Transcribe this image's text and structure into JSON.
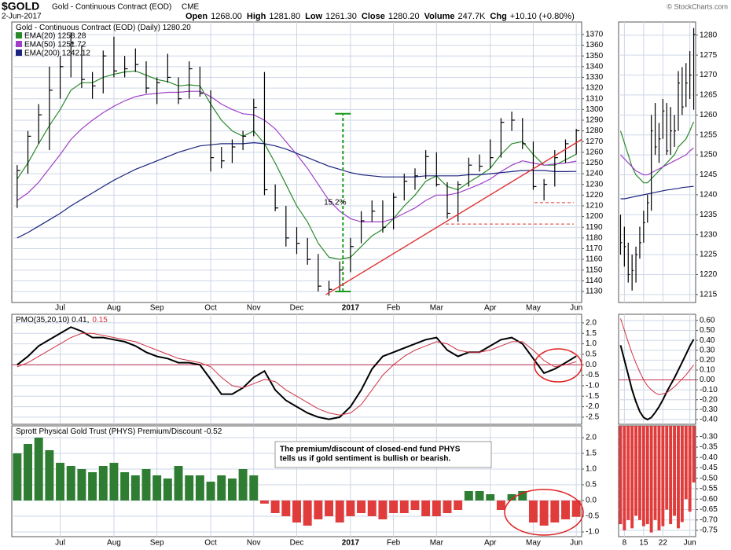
{
  "header": {
    "symbol": "$GOLD",
    "name": "Gold - Continuous Contract (EOD)",
    "exchange": "CME",
    "date": "2-Jun-2017",
    "quote": [
      {
        "label": "Open",
        "value": "1268.00"
      },
      {
        "label": "High",
        "value": "1281.80"
      },
      {
        "label": "Low",
        "value": "1261.30"
      },
      {
        "label": "Close",
        "value": "1280.20"
      },
      {
        "label": "Volume",
        "value": "247.7K"
      },
      {
        "label": "Chg",
        "value": "+10.10 (+0.80%)"
      }
    ],
    "credit": "© StockCharts.com"
  },
  "chart_data": [
    {
      "type": "ohlc",
      "color": "#000000",
      "grid": true,
      "label_parts": [
        {
          "text": "Gold - Continuous Contract (EOD) (Daily) 1280.20",
          "color": "#000000"
        }
      ],
      "categories": [
        null,
        null,
        null,
        null,
        "Jul",
        null,
        null,
        null,
        null,
        "Aug",
        null,
        null,
        null,
        "Sep",
        null,
        null,
        null,
        null,
        "Oct",
        null,
        null,
        null,
        "Nov",
        null,
        null,
        null,
        "Dec",
        null,
        null,
        null,
        null,
        "2017",
        null,
        null,
        null,
        "Feb",
        null,
        null,
        null,
        "Mar",
        null,
        null,
        null,
        null,
        "Apr",
        null,
        null,
        null,
        "May",
        null,
        null,
        null,
        "Jun"
      ],
      "high": [
        1248,
        1280,
        1305,
        1340,
        1350,
        1372,
        1360,
        1335,
        1355,
        1368,
        1350,
        1357,
        1345,
        1330,
        1352,
        1330,
        1345,
        1340,
        1318,
        1265,
        1272,
        1280,
        1310,
        1335,
        1230,
        1210,
        1190,
        1180,
        1165,
        1140,
        1158,
        1180,
        1205,
        1215,
        1215,
        1222,
        1240,
        1245,
        1262,
        1260,
        1232,
        1233,
        1255,
        1258,
        1272,
        1292,
        1298,
        1292,
        1270,
        1235,
        1262,
        1272,
        1281.8
      ],
      "low": [
        1208,
        1240,
        1268,
        1262,
        1310,
        1330,
        1320,
        1310,
        1315,
        1330,
        1330,
        1335,
        1315,
        1305,
        1325,
        1305,
        1310,
        1312,
        1242,
        1245,
        1250,
        1262,
        1275,
        1220,
        1205,
        1172,
        1165,
        1155,
        1130,
        1126,
        1130,
        1148,
        1175,
        1195,
        1185,
        1188,
        1215,
        1225,
        1235,
        1228,
        1198,
        1195,
        1228,
        1242,
        1245,
        1255,
        1280,
        1263,
        1225,
        1215,
        1228,
        1250,
        1258
      ],
      "close": [
        1243,
        1275,
        1295,
        1318,
        1340,
        1362,
        1328,
        1322,
        1350,
        1336,
        1338,
        1342,
        1320,
        1325,
        1330,
        1310,
        1338,
        1315,
        1255,
        1252,
        1265,
        1275,
        1302,
        1225,
        1208,
        1180,
        1175,
        1160,
        1135,
        1132,
        1150,
        1172,
        1196,
        1205,
        1190,
        1218,
        1233,
        1238,
        1256,
        1230,
        1203,
        1230,
        1248,
        1247,
        1255,
        1288,
        1290,
        1268,
        1228,
        1230,
        1255,
        1268,
        1280.2
      ],
      "overlays": [
        {
          "name": "EMA(20) 1258.28",
          "color": "#2a8a2a",
          "values": [
            1235,
            1250,
            1268,
            1285,
            1300,
            1318,
            1325,
            1325,
            1330,
            1333,
            1335,
            1336,
            1332,
            1328,
            1326,
            1322,
            1323,
            1322,
            1305,
            1290,
            1280,
            1275,
            1280,
            1268,
            1250,
            1230,
            1210,
            1195,
            1175,
            1162,
            1160,
            1162,
            1172,
            1182,
            1188,
            1198,
            1210,
            1220,
            1233,
            1238,
            1228,
            1225,
            1232,
            1238,
            1245,
            1258,
            1268,
            1270,
            1258,
            1248,
            1248,
            1253,
            1258.28
          ]
        },
        {
          "name": "EMA(50) 1251.72",
          "color": "#a040c8",
          "values": [
            1215,
            1222,
            1232,
            1245,
            1258,
            1272,
            1282,
            1290,
            1297,
            1303,
            1308,
            1312,
            1314,
            1315,
            1316,
            1316,
            1317,
            1317,
            1312,
            1305,
            1300,
            1296,
            1295,
            1290,
            1282,
            1270,
            1258,
            1245,
            1230,
            1215,
            1205,
            1198,
            1195,
            1195,
            1195,
            1198,
            1203,
            1208,
            1215,
            1220,
            1220,
            1222,
            1226,
            1230,
            1235,
            1242,
            1248,
            1252,
            1250,
            1248,
            1249,
            1250,
            1251.72
          ]
        },
        {
          "name": "EMA(200) 1242.12",
          "color": "#1a237e",
          "values": [
            1180,
            1185,
            1191,
            1197,
            1203,
            1210,
            1216,
            1222,
            1228,
            1234,
            1239,
            1244,
            1248,
            1252,
            1256,
            1260,
            1263,
            1266,
            1267,
            1268,
            1268,
            1268,
            1269,
            1268,
            1266,
            1263,
            1259,
            1255,
            1251,
            1247,
            1244,
            1241,
            1239,
            1238,
            1237,
            1237,
            1237,
            1237,
            1238,
            1238,
            1238,
            1238,
            1239,
            1239,
            1240,
            1241,
            1242,
            1243,
            1243,
            1243,
            1242,
            1242,
            1242.12
          ]
        }
      ],
      "ylim": [
        1119.7,
        1381.7
      ],
      "yticks": [
        1130,
        1140,
        1150,
        1160,
        1170,
        1180,
        1190,
        1200,
        1210,
        1220,
        1230,
        1240,
        1250,
        1260,
        1270,
        1280,
        1290,
        1300,
        1310,
        1320,
        1330,
        1340,
        1350,
        1360,
        1370
      ],
      "annotations": {
        "measure": {
          "values": [
            1130,
            1296
          ],
          "label": "15.2%",
          "color": "#1a9a1a"
        },
        "trendline": {
          "values": [
            1127,
            1272
          ],
          "color": "#e03030"
        },
        "support": {
          "values": [
            1193,
            1213
          ],
          "color": "#e03030"
        }
      }
    },
    {
      "type": "line",
      "grid": true,
      "zero_line_color": "#c03050",
      "label_parts": [
        {
          "text": "PMO(35,20,10) 0.41,",
          "color": "#000000"
        },
        {
          "text": "0.15",
          "color": "#d03040"
        }
      ],
      "series": [
        {
          "color": "#000000",
          "values": [
            0,
            0.4,
            0.9,
            1.2,
            1.5,
            1.8,
            1.6,
            1.3,
            1.3,
            1.2,
            1.1,
            0.9,
            0.6,
            0.4,
            0.3,
            0.1,
            0.1,
            0,
            -0.7,
            -1.4,
            -1.4,
            -1.1,
            -0.6,
            -0.3,
            -1.2,
            -1.7,
            -2,
            -2.3,
            -2.5,
            -2.6,
            -2.5,
            -2,
            -1.2,
            -0.2,
            0.4,
            0.6,
            0.8,
            1,
            1.2,
            1.3,
            0.7,
            0.4,
            0.6,
            0.6,
            0.9,
            1.2,
            1.3,
            1,
            0.3,
            -0.4,
            -0.2,
            0.1,
            0.41
          ]
        },
        {
          "color": "#d03040",
          "values": [
            -0.1,
            0.1,
            0.4,
            0.7,
            1,
            1.3,
            1.5,
            1.5,
            1.4,
            1.3,
            1.2,
            1.1,
            0.9,
            0.7,
            0.5,
            0.3,
            0.2,
            0.1,
            -0.1,
            -0.6,
            -1,
            -1.1,
            -0.9,
            -0.7,
            -0.8,
            -1.2,
            -1.5,
            -1.8,
            -2.1,
            -2.3,
            -2.4,
            -2.3,
            -1.9,
            -1.2,
            -0.5,
            0,
            0.4,
            0.7,
            0.9,
            1.1,
            1,
            0.7,
            0.6,
            0.6,
            0.7,
            0.9,
            1.1,
            1.1,
            0.7,
            0.2,
            -0.1,
            0,
            0.15
          ]
        }
      ],
      "ylim": [
        -2.84,
        2.41
      ],
      "yticks": [
        {
          "value": 2,
          "label": "2.0"
        },
        1.5,
        {
          "value": 1,
          "label": "1.0"
        },
        0.5,
        {
          "value": 0,
          "label": "0.0"
        },
        -0.5,
        {
          "value": -1,
          "label": "-1.0"
        },
        -1.5,
        {
          "value": -2,
          "label": "-2.0"
        },
        -2.5
      ]
    },
    {
      "type": "bar",
      "grid": true,
      "up_color": "#2e7d32",
      "down_color": "#e03c3c",
      "label_parts": [
        {
          "text": "Sprott Physical Gold Trust (PHYS) Premium/Discount -0.52",
          "color": "#000000"
        }
      ],
      "note": [
        "The premium/discount of closed-end fund PHYS",
        "tells us if gold sentiment is bullish or bearish."
      ],
      "values": [
        1.5,
        1.8,
        2,
        1.6,
        1.2,
        1.1,
        1,
        0.9,
        1.1,
        1.2,
        0.9,
        0.8,
        1,
        0.8,
        0.7,
        1.1,
        0.8,
        0.8,
        0.6,
        0.8,
        0.7,
        1,
        0.8,
        -0.1,
        -0.4,
        -0.5,
        -0.7,
        -0.8,
        -0.6,
        -0.5,
        -0.7,
        -0.5,
        -0.4,
        -0.5,
        -0.6,
        -0.4,
        -0.4,
        -0.3,
        -0.5,
        -0.5,
        -0.4,
        -0.3,
        0.3,
        0.3,
        0.2,
        -0.3,
        0.2,
        0.3,
        -0.7,
        -0.8,
        -0.7,
        -0.6,
        -0.52
      ],
      "ylim": [
        -1.15,
        2.375
      ],
      "yticks": [
        {
          "value": 2,
          "label": "2.0"
        },
        1.5,
        {
          "value": 1,
          "label": "1.0"
        },
        0.5,
        {
          "value": 0,
          "label": "0.0"
        },
        -0.5,
        {
          "value": -1,
          "label": "-1.0"
        }
      ]
    },
    {
      "type": "ohlc",
      "color": "#000000",
      "grid": true,
      "high": [
        1235,
        1232,
        1228,
        1225,
        1227,
        1232,
        1236,
        1240,
        1260,
        1263,
        1258,
        1264,
        1263,
        1262,
        1260,
        1271,
        1272,
        1273,
        1276,
        1281.8
      ],
      "low": [
        1225,
        1222,
        1218,
        1216,
        1218,
        1224,
        1228,
        1233,
        1236,
        1250,
        1248,
        1254,
        1250,
        1250,
        1252,
        1256,
        1260,
        1262,
        1264,
        1261.3
      ],
      "close": [
        1228,
        1227,
        1220,
        1221,
        1225,
        1228,
        1233,
        1238,
        1256,
        1252,
        1254,
        1261,
        1251,
        1256,
        1256,
        1268,
        1262,
        1268,
        1270,
        1280.2
      ],
      "overlays": [
        {
          "color": "#2a8a2a",
          "values": [
            1256,
            1253,
            1250,
            1247,
            1245,
            1244,
            1243,
            1243,
            1244,
            1245,
            1246,
            1247,
            1248,
            1249,
            1250,
            1252,
            1253,
            1254,
            1256,
            1258.28
          ]
        },
        {
          "color": "#a040c8",
          "values": [
            1250,
            1249,
            1248,
            1247,
            1246,
            1245.5,
            1245,
            1245,
            1245.5,
            1246,
            1246.5,
            1247,
            1247.5,
            1248,
            1248.5,
            1249,
            1249.5,
            1250,
            1251,
            1251.72
          ]
        },
        {
          "color": "#1a237e",
          "values": [
            1239,
            1239,
            1239.2,
            1239.4,
            1239.6,
            1239.8,
            1240,
            1240.2,
            1240.4,
            1240.6,
            1240.8,
            1241,
            1241.2,
            1241.3,
            1241.5,
            1241.6,
            1241.8,
            1241.9,
            1242,
            1242.12
          ]
        }
      ],
      "ylim": [
        1213,
        1283.3
      ],
      "yticks": [
        1215,
        1220,
        1225,
        1230,
        1235,
        1240,
        1245,
        1250,
        1255,
        1260,
        1265,
        1270,
        1275,
        1280
      ]
    },
    {
      "type": "line",
      "grid": true,
      "zero_line_color": "#c03050",
      "series": [
        {
          "color": "#000000",
          "values": [
            0.35,
            0.2,
            0.05,
            -0.1,
            -0.22,
            -0.32,
            -0.38,
            -0.4,
            -0.38,
            -0.33,
            -0.27,
            -0.2,
            -0.12,
            -0.05,
            0.02,
            0.1,
            0.18,
            0.26,
            0.34,
            0.41
          ]
        },
        {
          "color": "#d03040",
          "values": [
            0.62,
            0.5,
            0.38,
            0.27,
            0.17,
            0.08,
            0,
            -0.06,
            -0.1,
            -0.13,
            -0.15,
            -0.14,
            -0.13,
            -0.1,
            -0.07,
            -0.03,
            0.01,
            0.05,
            0.1,
            0.15
          ]
        }
      ],
      "ylim": [
        -0.448,
        0.663
      ],
      "yticks": [
        {
          "value": 0.6,
          "label": "0.60"
        },
        {
          "value": 0.5,
          "label": "0.50"
        },
        {
          "value": 0.4,
          "label": "0.40"
        },
        {
          "value": 0.3,
          "label": "0.30"
        },
        {
          "value": 0.2,
          "label": "0.20"
        },
        {
          "value": 0.1,
          "label": "0.10"
        },
        {
          "value": 0,
          "label": "0.00"
        },
        {
          "value": -0.1,
          "label": "-0.10"
        },
        {
          "value": -0.2,
          "label": "-0.20"
        },
        {
          "value": -0.3,
          "label": "-0.30"
        },
        {
          "value": -0.4,
          "label": "-0.40"
        }
      ]
    },
    {
      "type": "bar",
      "grid": true,
      "up_color": "#2e7d32",
      "down_color": "#e03c3c",
      "categories": [
        null,
        "8",
        null,
        null,
        null,
        null,
        "15",
        null,
        null,
        null,
        null,
        "22",
        null,
        null,
        null,
        null,
        null,
        null,
        "Jun",
        null
      ],
      "values": [
        -0.72,
        -0.75,
        -0.7,
        -0.74,
        -0.68,
        -0.7,
        -0.73,
        -0.72,
        -0.76,
        -0.7,
        -0.75,
        -0.73,
        -0.65,
        -0.72,
        -0.68,
        -0.74,
        -0.71,
        -0.6,
        -0.66,
        -0.52
      ],
      "ylim": [
        -0.78,
        -0.248
      ],
      "yticks": [
        {
          "value": -0.3,
          "label": "-0.30"
        },
        -0.35,
        {
          "value": -0.4,
          "label": "-0.40"
        },
        -0.45,
        {
          "value": -0.5,
          "label": "-0.50"
        },
        -0.55,
        {
          "value": -0.6,
          "label": "-0.60"
        },
        -0.65,
        {
          "value": -0.7,
          "label": "-0.70"
        },
        -0.75
      ]
    }
  ]
}
